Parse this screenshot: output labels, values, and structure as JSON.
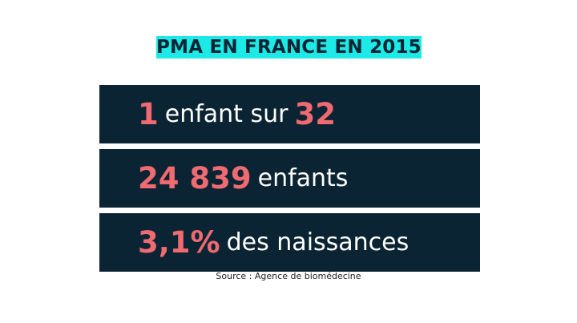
{
  "title": "PMA EN FRANCE EN 2015",
  "stats": [
    {
      "emphasis": "1",
      "text": "enfant sur",
      "emphasis_after": "32"
    },
    {
      "emphasis": "24 839",
      "text": "enfants"
    },
    {
      "emphasis": "3,1%",
      "text": "des naissances"
    }
  ],
  "source": "Source :  Agence de biomédecine",
  "colors": {
    "title_band": "#1de9e6",
    "panel_bg": "#0b2433",
    "accent": "#f06a71",
    "text_light": "#ffffff"
  }
}
